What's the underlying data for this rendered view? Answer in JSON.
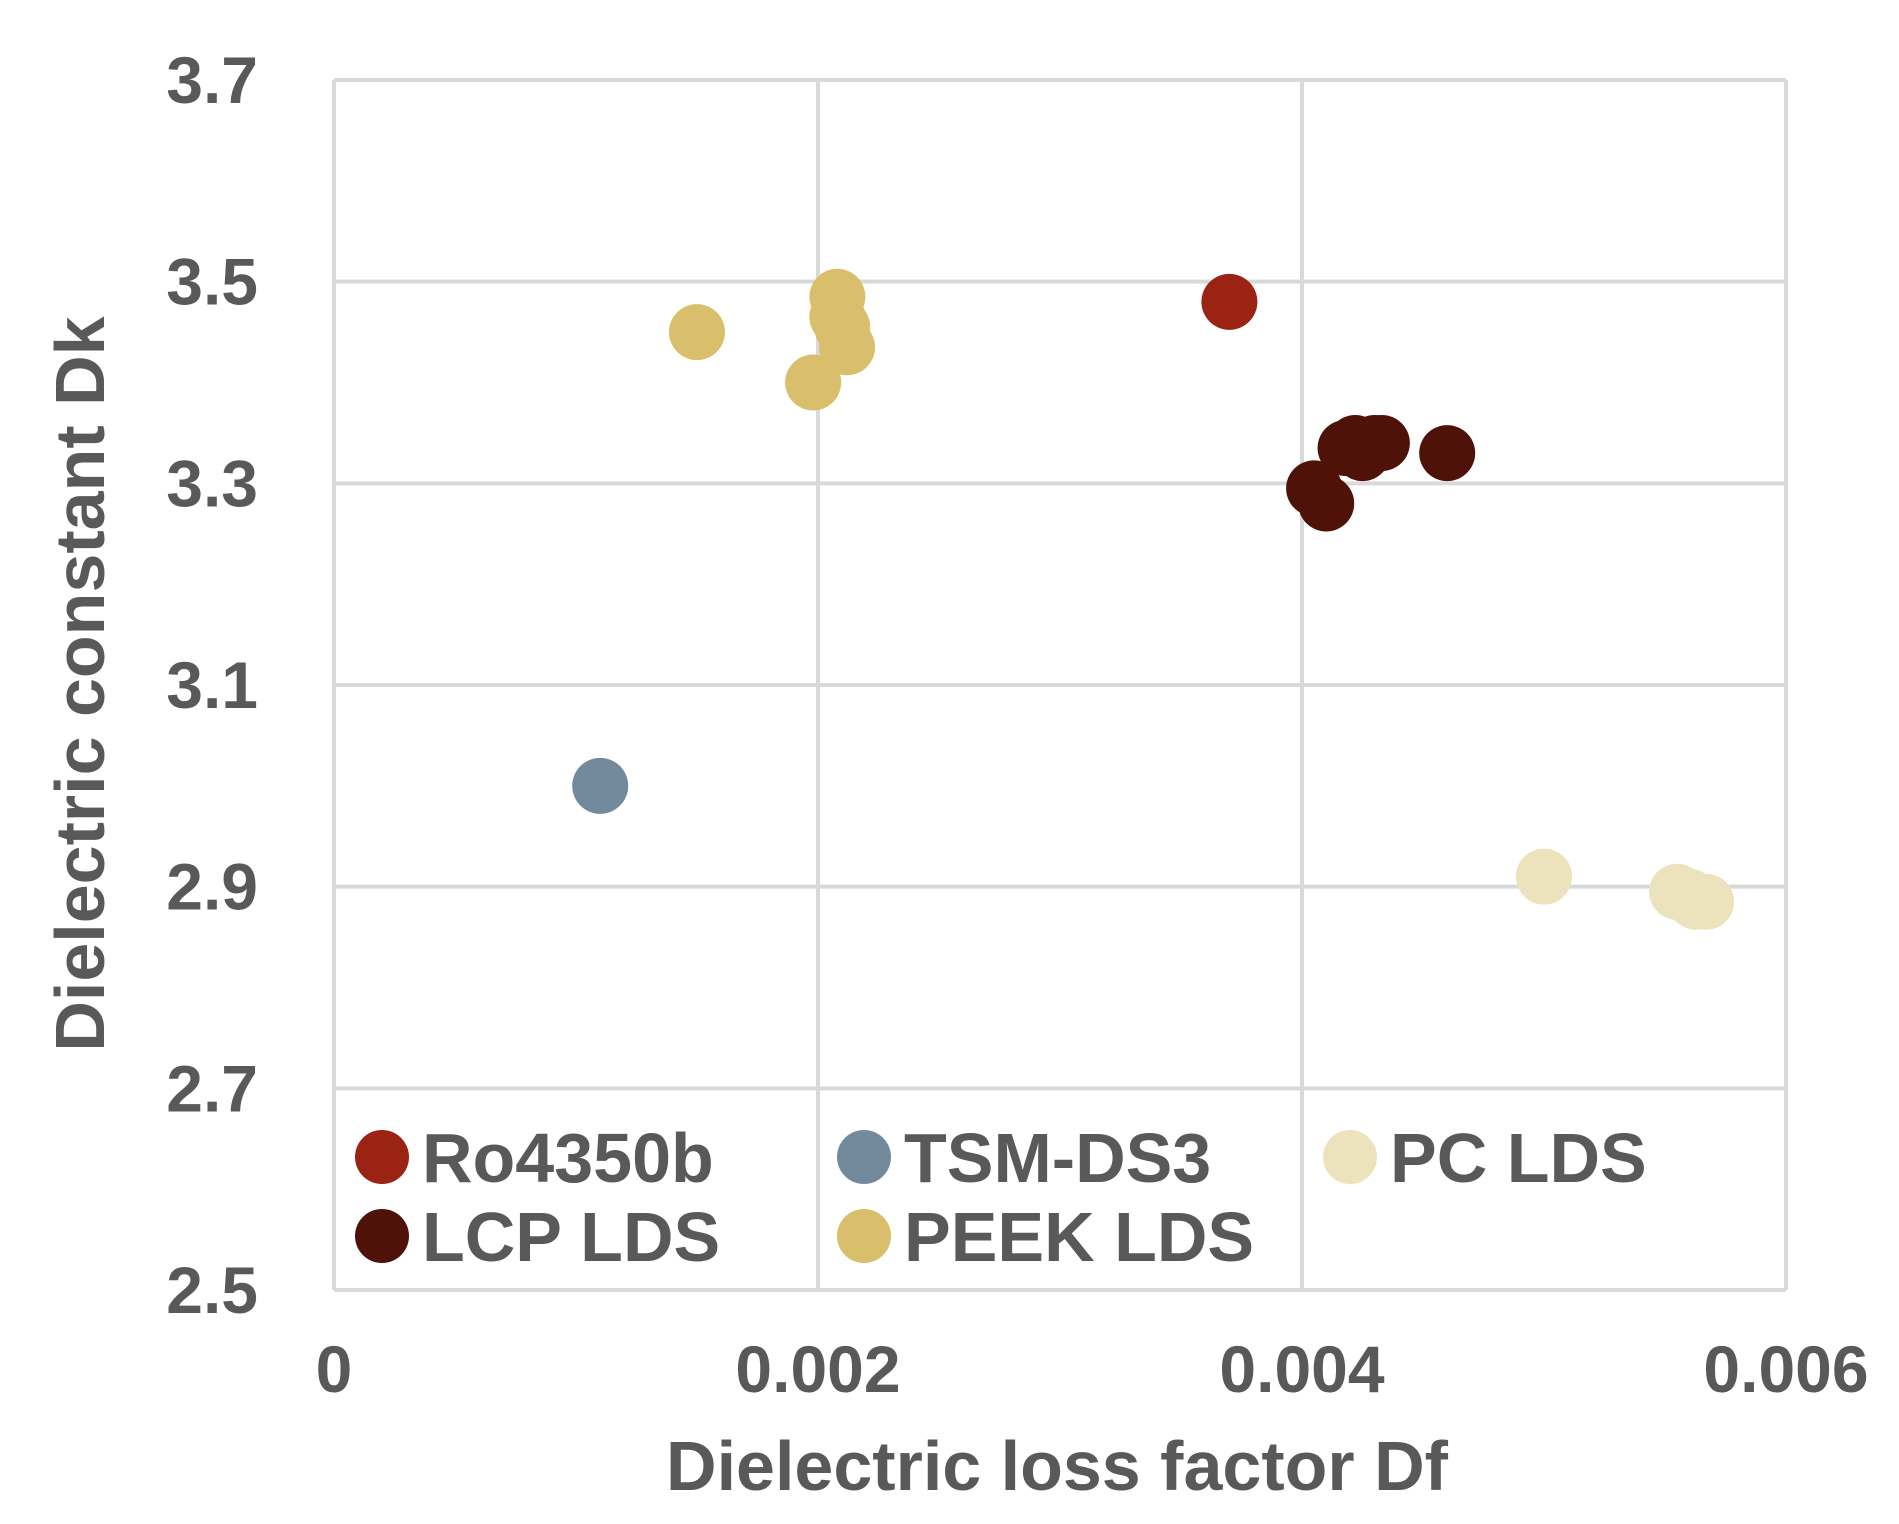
{
  "chart_data": {
    "type": "scatter",
    "xlabel": "Dielectric loss factor Df",
    "ylabel": "Dielectric constant Dk",
    "xlim": [
      0,
      0.006
    ],
    "ylim": [
      2.5,
      3.7
    ],
    "x_ticks": [
      "0",
      "0.002",
      "0.004",
      "0.006"
    ],
    "x_tick_values": [
      0,
      0.002,
      0.004,
      0.006
    ],
    "y_ticks": [
      "2.5",
      "2.7",
      "2.9",
      "3.1",
      "3.3",
      "3.5",
      "3.7"
    ],
    "y_tick_values": [
      2.5,
      2.7,
      2.9,
      3.1,
      3.3,
      3.5,
      3.7
    ],
    "grid": true,
    "legend_position": "bottom-left inside plot",
    "series": [
      {
        "name": "Ro4350b",
        "color": "#9b2313",
        "points": [
          [
            0.0037,
            3.48
          ]
        ]
      },
      {
        "name": "TSM-DS3",
        "color": "#738a9d",
        "points": [
          [
            0.0011,
            3.0
          ]
        ]
      },
      {
        "name": "PC LDS",
        "color": "#ece2bc",
        "points": [
          [
            0.005,
            2.91
          ],
          [
            0.00555,
            2.895
          ],
          [
            0.0056,
            2.89
          ],
          [
            0.00563,
            2.885
          ],
          [
            0.00567,
            2.885
          ]
        ]
      },
      {
        "name": "LCP LDS",
        "color": "#4e1209",
        "points": [
          [
            0.00405,
            3.295
          ],
          [
            0.0041,
            3.28
          ],
          [
            0.00418,
            3.335
          ],
          [
            0.00422,
            3.34
          ],
          [
            0.00425,
            3.33
          ],
          [
            0.0043,
            3.34
          ],
          [
            0.00433,
            3.34
          ],
          [
            0.0046,
            3.33
          ]
        ]
      },
      {
        "name": "PEEK LDS",
        "color": "#d9bf6b",
        "points": [
          [
            0.0015,
            3.45
          ],
          [
            0.00198,
            3.4
          ],
          [
            0.00208,
            3.485
          ],
          [
            0.00208,
            3.465
          ],
          [
            0.0021,
            3.455
          ],
          [
            0.00212,
            3.435
          ]
        ]
      }
    ],
    "legend_rows": [
      [
        "Ro4350b",
        "TSM-DS3",
        "PC LDS"
      ],
      [
        "LCP LDS",
        "PEEK LDS"
      ]
    ]
  }
}
